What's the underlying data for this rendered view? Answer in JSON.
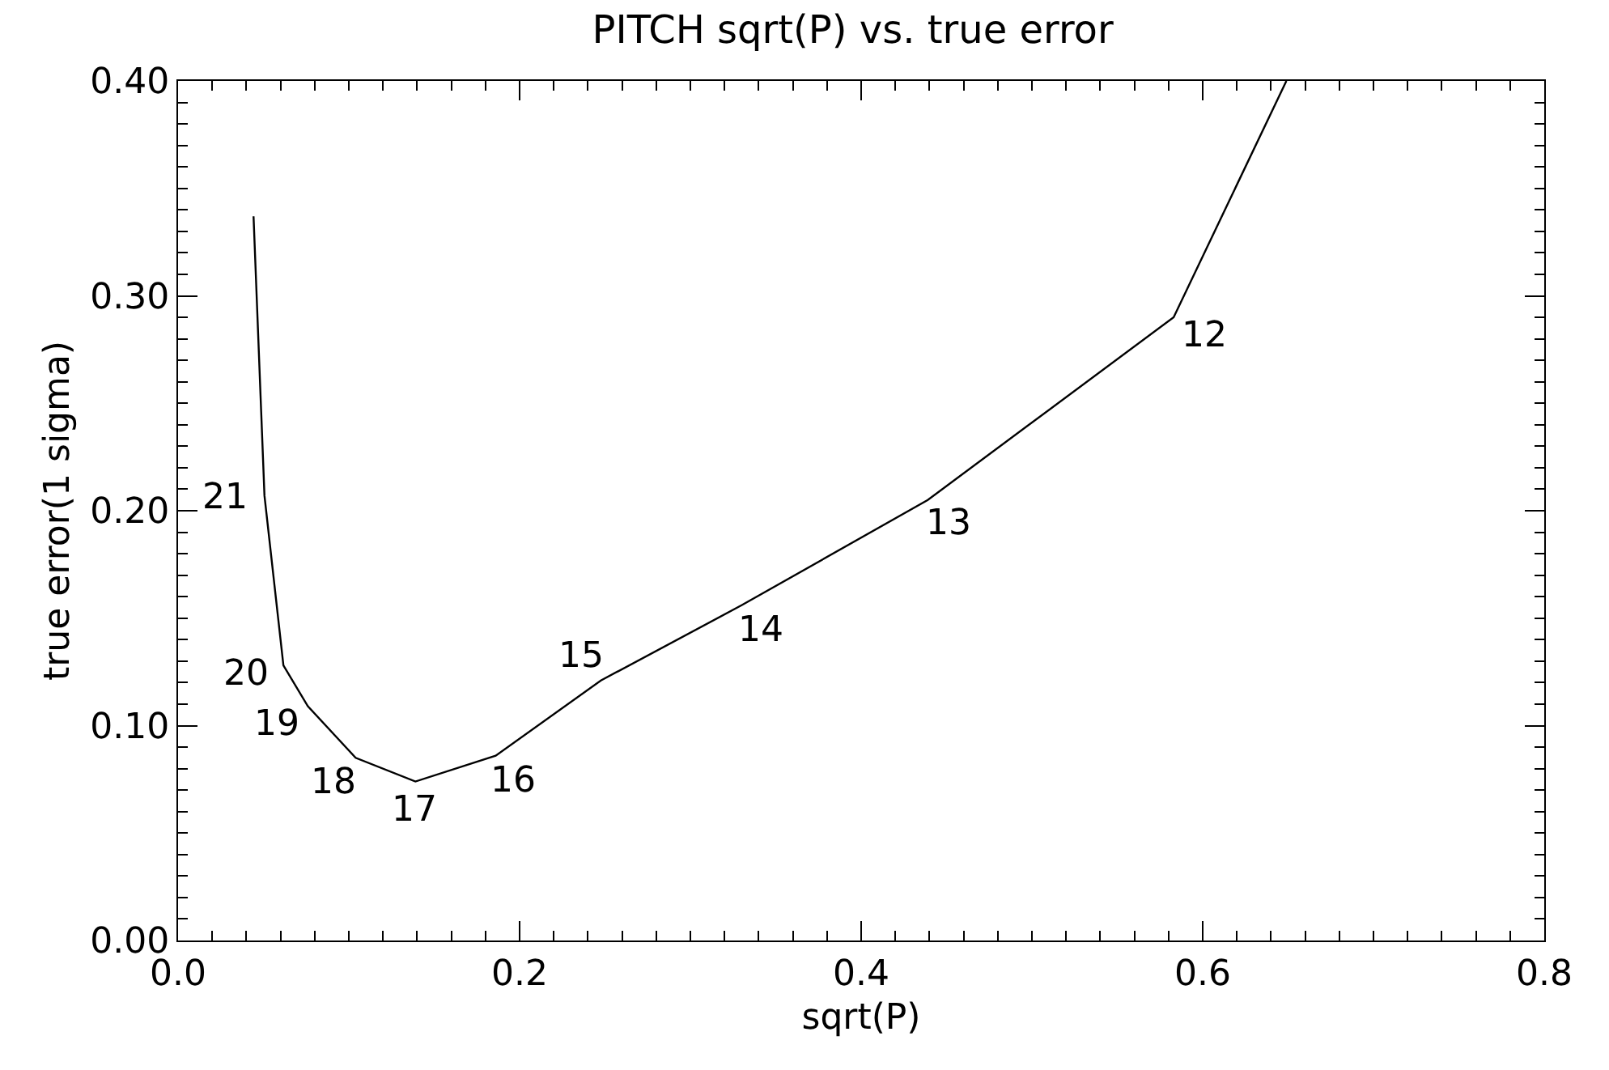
{
  "chart_data": {
    "type": "line",
    "title": "PITCH sqrt(P) vs. true error",
    "xlabel": "sqrt(P)",
    "ylabel": "true error(1 sigma)",
    "x": [
      0.0442,
      0.0506,
      0.0617,
      0.076,
      0.104,
      0.139,
      0.186,
      0.2476,
      0.33,
      0.439,
      0.583,
      0.649
    ],
    "series": [
      {
        "color": "#000000",
        "values": [
          0.337,
          0.207,
          0.128,
          0.109,
          0.085,
          0.074,
          0.086,
          0.121,
          0.156,
          0.205,
          0.29,
          0.4
        ]
      }
    ],
    "annotations": [
      {
        "text": "21",
        "x": 0.0506,
        "y": 0.207
      },
      {
        "text": "20",
        "x": 0.0617,
        "y": 0.128
      },
      {
        "text": "19",
        "x": 0.076,
        "y": 0.109
      },
      {
        "text": "18",
        "x": 0.104,
        "y": 0.085
      },
      {
        "text": "17",
        "x": 0.139,
        "y": 0.074
      },
      {
        "text": "16",
        "x": 0.186,
        "y": 0.086
      },
      {
        "text": "15",
        "x": 0.2476,
        "y": 0.121
      },
      {
        "text": "14",
        "x": 0.33,
        "y": 0.156
      },
      {
        "text": "13",
        "x": 0.439,
        "y": 0.205
      },
      {
        "text": "12",
        "x": 0.583,
        "y": 0.29
      }
    ],
    "xlim": [
      0,
      0.8
    ],
    "ylim": [
      0,
      0.4
    ],
    "xticks": [
      {
        "value": 0,
        "label": "0.0"
      },
      {
        "value": 0.2,
        "label": "0.2"
      },
      {
        "value": 0.4,
        "label": "0.4"
      },
      {
        "value": 0.6,
        "label": "0.6"
      },
      {
        "value": 0.8,
        "label": "0.8"
      }
    ],
    "yticks": [
      {
        "value": 0,
        "label": "0.00"
      },
      {
        "value": 0.1,
        "label": "0.10"
      },
      {
        "value": 0.2,
        "label": "0.20"
      },
      {
        "value": 0.3,
        "label": "0.30"
      },
      {
        "value": 0.4,
        "label": "0.40"
      }
    ],
    "marker": "none",
    "line_style": "solid"
  }
}
